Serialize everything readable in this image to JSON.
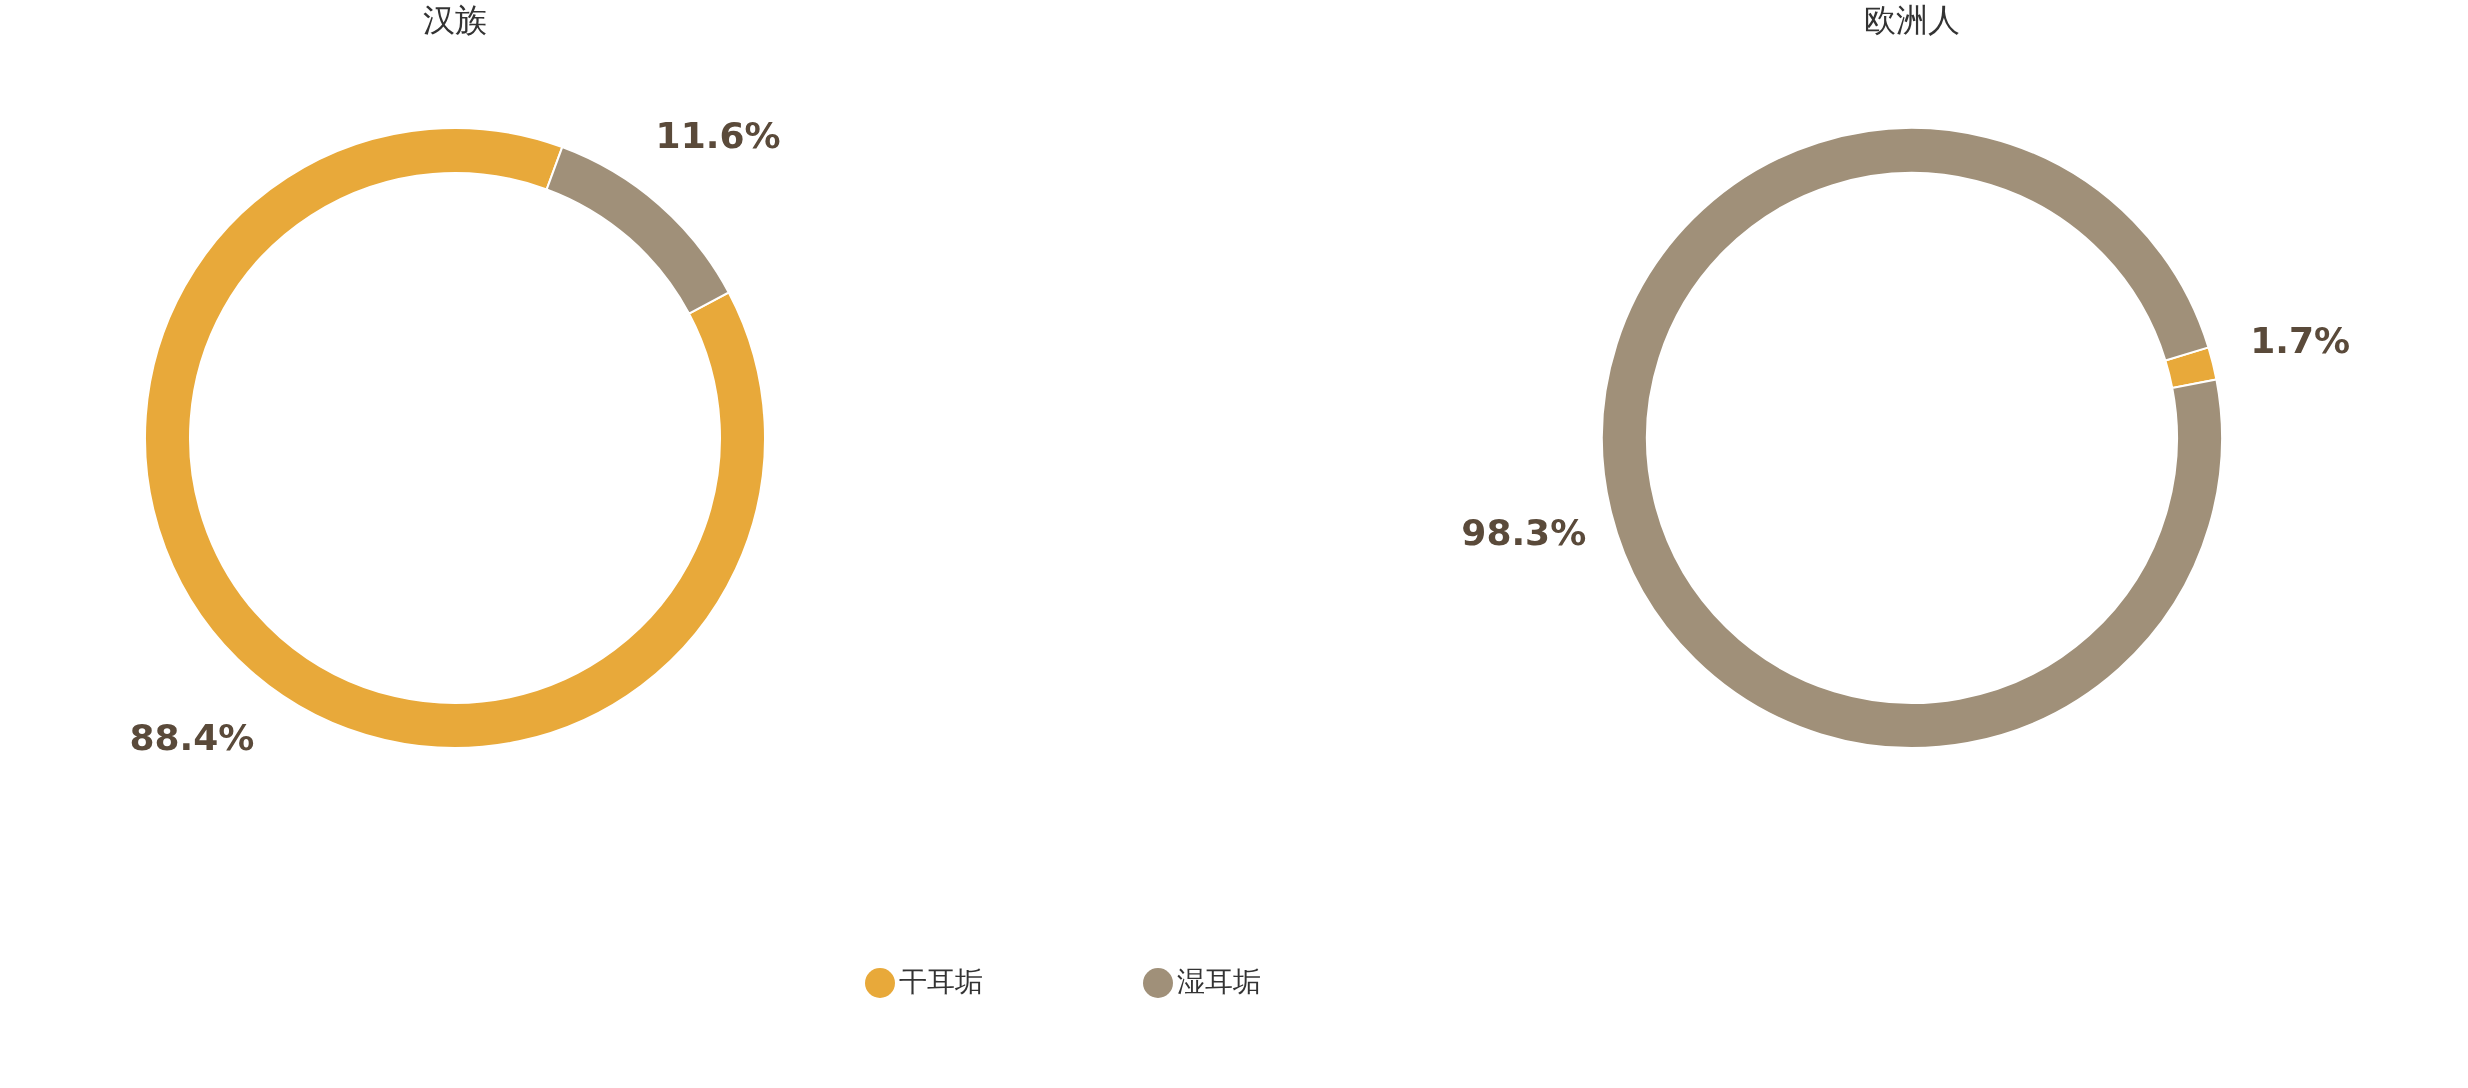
{
  "chart_data": [
    {
      "type": "donut",
      "title": "汉族",
      "categories": [
        "干耳垢",
        "湿耳垢"
      ],
      "values": [
        88.4,
        11.6
      ],
      "colors": [
        "#e8a93a",
        "#a09079"
      ],
      "value_labels": [
        "88.4%",
        "11.6%"
      ],
      "legend": "bottom"
    },
    {
      "type": "donut",
      "title": "欧洲人",
      "categories": [
        null,
        null
      ],
      "values": [
        1.7,
        98.3
      ],
      "colors": [
        "#e8a93a",
        "#a09079"
      ],
      "value_labels": [
        "1.7%",
        "98.3%"
      ]
    }
  ]
}
